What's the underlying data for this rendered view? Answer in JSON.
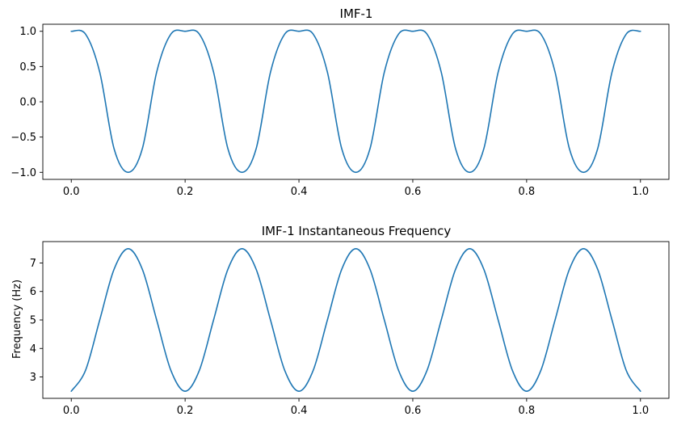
{
  "chart_data": [
    {
      "type": "line",
      "title": "IMF-1",
      "xlabel": "",
      "ylabel": "",
      "xlim": [
        -0.05,
        1.05
      ],
      "ylim": [
        -1.1,
        1.1
      ],
      "xticks": [
        0.0,
        0.2,
        0.4,
        0.6,
        0.8,
        1.0
      ],
      "xtick_labels": [
        "0.0",
        "0.2",
        "0.4",
        "0.6",
        "0.8",
        "1.0"
      ],
      "yticks": [
        -1.0,
        -0.5,
        0.0,
        0.5,
        1.0
      ],
      "ytick_labels": [
        "−1.0",
        "−0.5",
        "0.0",
        "0.5",
        "1.0"
      ],
      "grid": false,
      "color": "#1f77b4",
      "series": [
        {
          "x": [
            0.0,
            0.025,
            0.05,
            0.075,
            0.1,
            0.125,
            0.15,
            0.175,
            0.2,
            0.225,
            0.25,
            0.275,
            0.3,
            0.325,
            0.35,
            0.375,
            0.4,
            0.425,
            0.45,
            0.475,
            0.5,
            0.525,
            0.55,
            0.575,
            0.6,
            0.625,
            0.65,
            0.675,
            0.7,
            0.725,
            0.75,
            0.775,
            0.8,
            0.825,
            0.85,
            0.875,
            0.9,
            0.925,
            0.95,
            0.975,
            1.0
          ],
          "y": [
            1.0,
            0.96,
            0.42,
            -0.66,
            -1.0,
            -0.66,
            0.42,
            0.96,
            1.0,
            0.96,
            0.42,
            -0.66,
            -1.0,
            -0.66,
            0.42,
            0.96,
            1.0,
            0.96,
            0.42,
            -0.66,
            -1.0,
            -0.66,
            0.42,
            0.96,
            1.0,
            0.96,
            0.42,
            -0.66,
            -1.0,
            -0.66,
            0.42,
            0.96,
            1.0,
            0.96,
            0.42,
            -0.66,
            -1.0,
            -0.66,
            0.42,
            0.96,
            1.0
          ]
        }
      ]
    },
    {
      "type": "line",
      "title": "IMF-1 Instantaneous Frequency",
      "xlabel": "",
      "ylabel": "Frequency (Hz)",
      "xlim": [
        -0.05,
        1.05
      ],
      "ylim": [
        2.25,
        7.75
      ],
      "xticks": [
        0.0,
        0.2,
        0.4,
        0.6,
        0.8,
        1.0
      ],
      "xtick_labels": [
        "0.0",
        "0.2",
        "0.4",
        "0.6",
        "0.8",
        "1.0"
      ],
      "yticks": [
        3,
        4,
        5,
        6,
        7
      ],
      "ytick_labels": [
        "3",
        "4",
        "5",
        "6",
        "7"
      ],
      "grid": false,
      "color": "#1f77b4",
      "series": [
        {
          "x": [
            0.0,
            0.025,
            0.05,
            0.075,
            0.1,
            0.125,
            0.15,
            0.175,
            0.2,
            0.225,
            0.25,
            0.275,
            0.3,
            0.325,
            0.35,
            0.375,
            0.4,
            0.425,
            0.45,
            0.475,
            0.5,
            0.525,
            0.55,
            0.575,
            0.6,
            0.625,
            0.65,
            0.675,
            0.7,
            0.725,
            0.75,
            0.775,
            0.8,
            0.825,
            0.85,
            0.875,
            0.9,
            0.925,
            0.95,
            0.975,
            1.0
          ],
          "y": [
            2.5,
            3.23,
            5.0,
            6.77,
            7.5,
            6.77,
            5.0,
            3.23,
            2.5,
            3.23,
            5.0,
            6.77,
            7.5,
            6.77,
            5.0,
            3.23,
            2.5,
            3.23,
            5.0,
            6.77,
            7.5,
            6.77,
            5.0,
            3.23,
            2.5,
            3.23,
            5.0,
            6.77,
            7.5,
            6.77,
            5.0,
            3.23,
            2.5,
            3.23,
            5.0,
            6.77,
            7.5,
            6.77,
            5.0,
            3.23,
            2.5
          ]
        }
      ]
    }
  ]
}
